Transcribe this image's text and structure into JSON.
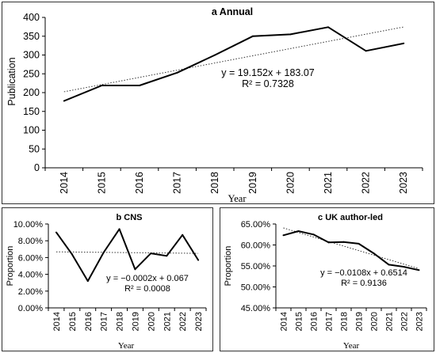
{
  "chart_data": [
    {
      "id": "a",
      "type": "line",
      "title": "a Annual",
      "xlabel": "Year",
      "ylabel": "Publication",
      "categories": [
        "2014",
        "2015",
        "2016",
        "2017",
        "2018",
        "2019",
        "2020",
        "2021",
        "2022",
        "2023"
      ],
      "values": [
        178,
        219,
        219,
        253,
        300,
        350,
        355,
        374,
        311,
        331
      ],
      "yticks": [
        "0",
        "50",
        "100",
        "150",
        "200",
        "250",
        "300",
        "350",
        "400"
      ],
      "ylim": [
        0,
        400
      ],
      "trendline": {
        "type": "linear",
        "slope": 19.152,
        "intercept": 183.07,
        "equation": "y = 19.152x + 183.07",
        "r2": "R² = 0.7328"
      },
      "grid": false,
      "colors": {
        "line": "#000000",
        "trend": "#333333"
      }
    },
    {
      "id": "b",
      "type": "line",
      "title": "b CNS",
      "xlabel": "Year",
      "ylabel": "Proportion",
      "categories": [
        "2014",
        "2015",
        "2016",
        "2017",
        "2018",
        "2019",
        "2020",
        "2021",
        "2022",
        "2023"
      ],
      "values": [
        0.09,
        0.064,
        0.032,
        0.066,
        0.094,
        0.046,
        0.065,
        0.062,
        0.087,
        0.057
      ],
      "yticks": [
        "0.00%",
        "2.00%",
        "4.00%",
        "6.00%",
        "8.00%",
        "10.00%"
      ],
      "ylim": [
        0,
        0.1
      ],
      "trendline": {
        "type": "linear",
        "slope": -0.0002,
        "intercept": 0.067,
        "equation": "y = −0.0002x + 0.067",
        "r2": "R² = 0.0008"
      },
      "grid": false,
      "colors": {
        "line": "#000000",
        "trend": "#333333"
      }
    },
    {
      "id": "c",
      "type": "line",
      "title": "c UK author-led",
      "xlabel": "Year",
      "ylabel": "Proportion",
      "categories": [
        "2014",
        "2015",
        "2016",
        "2017",
        "2018",
        "2019",
        "2020",
        "2021",
        "2022",
        "2023"
      ],
      "values": [
        0.623,
        0.633,
        0.625,
        0.606,
        0.607,
        0.603,
        0.58,
        0.553,
        0.548,
        0.54
      ],
      "yticks": [
        "45.00%",
        "50.00%",
        "55.00%",
        "60.00%",
        "65.00%"
      ],
      "ylim": [
        0.45,
        0.65
      ],
      "trendline": {
        "type": "linear",
        "slope": -0.0108,
        "intercept": 0.6514,
        "equation": "y = −0.0108x + 0.6514",
        "r2": "R² = 0.9136"
      },
      "grid": false,
      "colors": {
        "line": "#000000",
        "trend": "#333333"
      }
    }
  ]
}
